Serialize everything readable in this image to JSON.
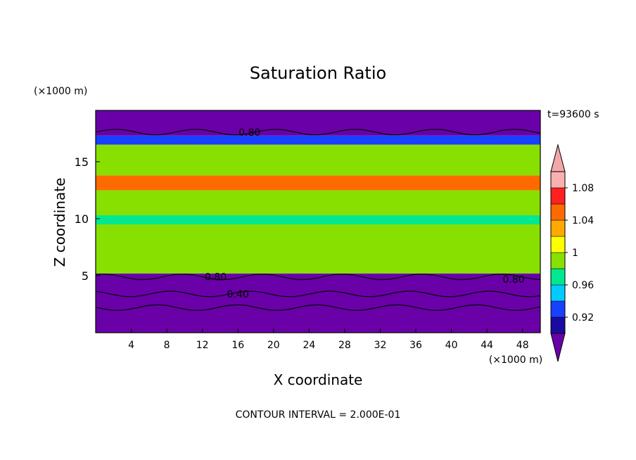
{
  "chart_data": {
    "type": "heatmap",
    "title": "Saturation Ratio",
    "xlabel": "X coordinate",
    "ylabel": "Z coordinate",
    "x_unit": "(×1000 m)",
    "y_unit": "(×1000 m)",
    "time_label": "t=93600 s",
    "footer": "CONTOUR INTERVAL = 2.000E-01",
    "xlim": [
      0,
      50
    ],
    "ylim": [
      0,
      19.5
    ],
    "x_ticks": [
      4,
      8,
      12,
      16,
      20,
      24,
      28,
      32,
      36,
      40,
      44,
      48
    ],
    "y_ticks": [
      5,
      10,
      15
    ],
    "contour_labels": [
      {
        "text": "0.80",
        "x": 17.3,
        "z": 17.6
      },
      {
        "text": "0.80",
        "x": 13.5,
        "z": 4.9
      },
      {
        "text": "0.80",
        "x": 47.0,
        "z": 4.7
      },
      {
        "text": "0.40",
        "x": 16.0,
        "z": 3.4
      }
    ],
    "colorbar": {
      "labels": [
        "0.92",
        "0.96",
        "1",
        "1.04",
        "1.08"
      ],
      "levels": [
        0.9,
        0.92,
        0.94,
        0.96,
        0.98,
        1.0,
        1.02,
        1.04,
        1.06,
        1.08,
        1.1
      ],
      "colors": [
        "#6a00a8",
        "#1a0aa0",
        "#1840ff",
        "#00ccff",
        "#00e890",
        "#88e000",
        "#ffff00",
        "#ffaa00",
        "#ff6a00",
        "#ff2020",
        "#f8b0b0",
        "#f2a8a8"
      ],
      "extend": "both"
    },
    "bands": [
      {
        "z0": 0,
        "z1": 5.2,
        "color": "#6a00a8"
      },
      {
        "z0": 5.2,
        "z1": 12.5,
        "color": "#88e000"
      },
      {
        "z0": 12.5,
        "z1": 13.8,
        "color": "#ff6a00"
      },
      {
        "z0": 13.8,
        "z1": 16.5,
        "color": "#88e000"
      },
      {
        "z0": 16.5,
        "z1": 17.3,
        "color": "#1840ff"
      },
      {
        "z0": 17.3,
        "z1": 19.5,
        "color": "#6a00a8"
      }
    ]
  }
}
